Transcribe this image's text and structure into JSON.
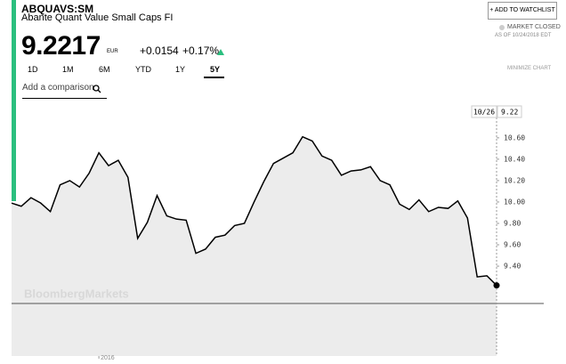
{
  "header": {
    "ticker": "ABQUAVS:SM",
    "name": "Abante Quant Value Small Caps FI",
    "price": "9.2217",
    "currency": "EUR",
    "change": "+0.0154",
    "change_pct": "+0.17%",
    "watchlist_button": "+ ADD TO WATCHLIST",
    "market_status": "MARKET CLOSED",
    "as_of": "AS OF 10/24/2018 EDT"
  },
  "tabs": [
    "1D",
    "1M",
    "6M",
    "YTD",
    "1Y",
    "5Y"
  ],
  "minimize": "MINIMIZE CHART",
  "comparison_placeholder": "Add a comparison",
  "watermark": "BloombergMarkets",
  "chart_data": {
    "type": "area-line",
    "color": "#000000",
    "fill": "#ececec",
    "date_label": "10/26",
    "last_label": "9.22",
    "categories": [
      null,
      null,
      null,
      null,
      null,
      null,
      null,
      null,
      null,
      "2016",
      null,
      null,
      null,
      null,
      null,
      null,
      null,
      null,
      null,
      null,
      null,
      null,
      null,
      null,
      null,
      null,
      null,
      null,
      null,
      null,
      null,
      null,
      null,
      null,
      null,
      null,
      null,
      null,
      null,
      null,
      null,
      null,
      null,
      null,
      null,
      null,
      null,
      null,
      null,
      null,
      null
    ],
    "values": [
      9.99,
      9.96,
      10.04,
      9.99,
      9.91,
      10.16,
      10.2,
      10.14,
      10.27,
      10.46,
      10.34,
      10.39,
      10.23,
      9.66,
      9.81,
      10.06,
      9.87,
      9.84,
      9.83,
      9.52,
      9.56,
      9.67,
      9.69,
      9.78,
      9.8,
      10.0,
      10.19,
      10.36,
      10.41,
      10.46,
      10.61,
      10.57,
      10.43,
      10.39,
      10.25,
      10.29,
      10.3,
      10.33,
      10.2,
      10.16,
      9.98,
      9.93,
      10.02,
      9.91,
      9.95,
      9.94,
      10.01,
      9.85,
      9.3,
      9.31,
      9.22
    ],
    "ylim": [
      8.56,
      10.89
    ],
    "yticks": [
      {
        "value": 9.4,
        "label": "9.40"
      },
      {
        "value": 9.6,
        "label": "9.60"
      },
      {
        "value": 9.8,
        "label": "9.80"
      },
      {
        "value": 10.0,
        "label": "10.00"
      },
      {
        "value": 10.2,
        "label": "10.20"
      },
      {
        "value": 10.4,
        "label": "10.40"
      },
      {
        "value": 10.6,
        "label": "10.60"
      }
    ],
    "grid": false
  }
}
